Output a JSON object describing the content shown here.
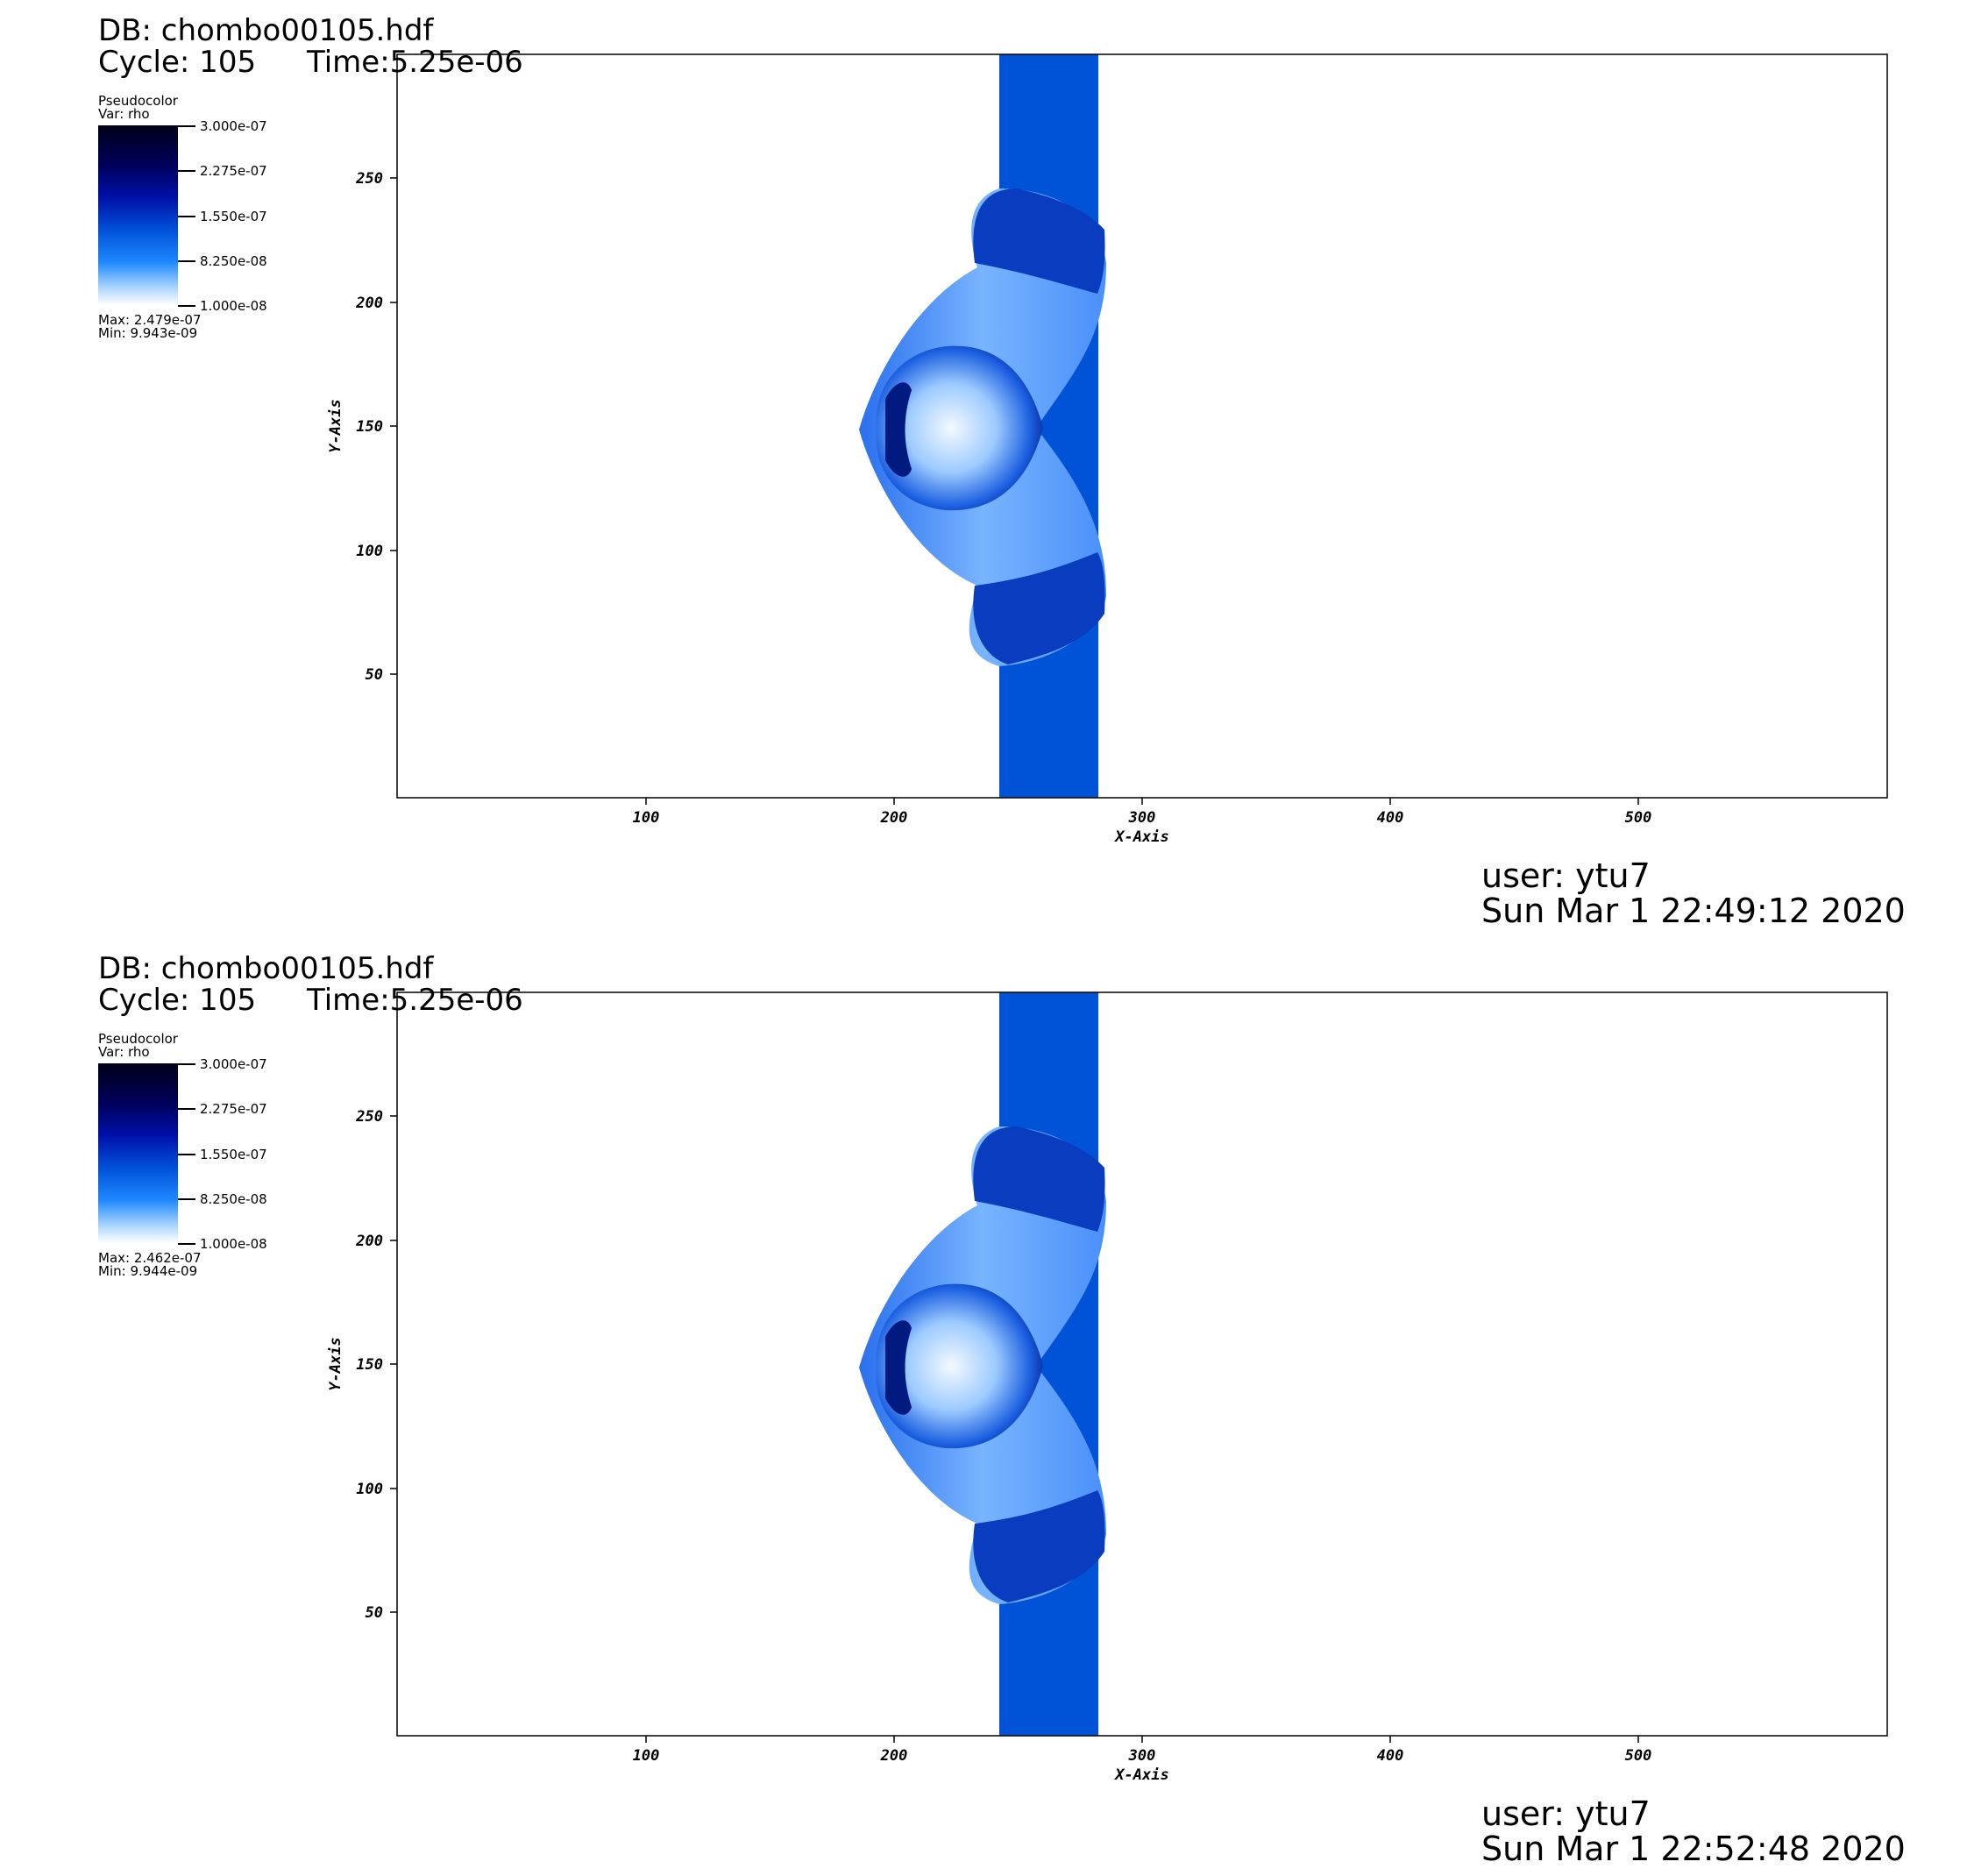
{
  "panels": [
    {
      "db": "DB: chombo00105.hdf",
      "cycle": "Cycle: 105",
      "time": "Time:5.25e-06",
      "legend": {
        "plot_type": "Pseudocolor",
        "var": "Var: rho",
        "ticks": [
          "3.000e-07",
          "2.275e-07",
          "1.550e-07",
          "8.250e-08",
          "1.000e-08"
        ],
        "max": "Max:  2.479e-07",
        "min": "Min:  9.943e-09"
      },
      "x_axis_label": "X-Axis",
      "y_axis_label": "Y-Axis",
      "x_ticks": [
        "100",
        "200",
        "300",
        "400",
        "500"
      ],
      "y_ticks": [
        "250",
        "200",
        "150",
        "100",
        "50"
      ],
      "user": "user: ytu7",
      "date": "Sun Mar  1 22:49:12 2020"
    },
    {
      "db": "DB: chombo00105.hdf",
      "cycle": "Cycle: 105",
      "time": "Time:5.25e-06",
      "legend": {
        "plot_type": "Pseudocolor",
        "var": "Var: rho",
        "ticks": [
          "3.000e-07",
          "2.275e-07",
          "1.550e-07",
          "8.250e-08",
          "1.000e-08"
        ],
        "max": "Max:  2.462e-07",
        "min": "Min:  9.944e-09"
      },
      "x_axis_label": "X-Axis",
      "y_axis_label": "Y-Axis",
      "x_ticks": [
        "100",
        "200",
        "300",
        "400",
        "500"
      ],
      "y_ticks": [
        "250",
        "200",
        "150",
        "100",
        "50"
      ],
      "user": "user: ytu7",
      "date": "Sun Mar  1 22:52:48 2020"
    }
  ],
  "colors": {
    "column": "#0050d8",
    "shell_light": "#5aa0ff",
    "shell_dark": "#0030b8",
    "core_dark": "#001a80",
    "core_light": "#e8f2ff"
  }
}
